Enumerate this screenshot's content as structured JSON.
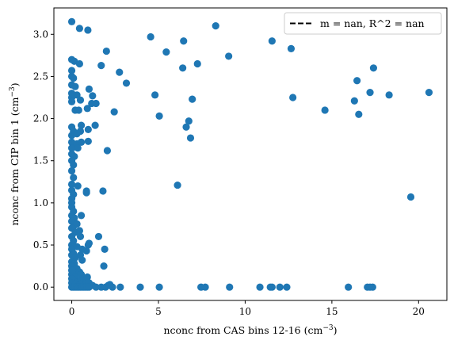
{
  "chart_data": {
    "type": "scatter",
    "title": "",
    "xlabel": "nconc from CAS bins 12-16 (cm",
    "xlabel_exp": "−3",
    "xlabel_close": ")",
    "ylabel": "nconc from CIP bin 1 (cm",
    "ylabel_exp": "−3",
    "ylabel_close": ")",
    "xlim": [
      -1.03,
      21.63
    ],
    "ylim": [
      -0.158,
      3.313
    ],
    "xticks": [
      0,
      5,
      10,
      15,
      20
    ],
    "xtick_labels": [
      "0",
      "5",
      "10",
      "15",
      "20"
    ],
    "yticks": [
      0.0,
      0.5,
      1.0,
      1.5,
      2.0,
      2.5,
      3.0
    ],
    "ytick_labels": [
      "0.0",
      "0.5",
      "1.0",
      "1.5",
      "2.0",
      "2.5",
      "3.0"
    ],
    "grid": false,
    "legend": {
      "placement": "top-right",
      "entries": [
        {
          "label": "m = nan, R^2 = nan",
          "style": "dashed-line",
          "color": "#000000"
        }
      ]
    },
    "series": [
      {
        "marker_color": "#1f77b4",
        "points": [
          [
            0.0,
            3.15
          ],
          [
            0.45,
            3.07
          ],
          [
            0.93,
            3.05
          ],
          [
            4.55,
            2.97
          ],
          [
            6.45,
            2.92
          ],
          [
            8.3,
            3.1
          ],
          [
            11.55,
            2.92
          ],
          [
            12.65,
            2.83
          ],
          [
            0.0,
            2.7
          ],
          [
            0.15,
            2.68
          ],
          [
            0.45,
            2.65
          ],
          [
            1.7,
            2.63
          ],
          [
            2.0,
            2.8
          ],
          [
            5.45,
            2.79
          ],
          [
            7.25,
            2.65
          ],
          [
            9.05,
            2.74
          ],
          [
            0.0,
            2.57
          ],
          [
            0.0,
            2.5
          ],
          [
            0.1,
            2.48
          ],
          [
            0.0,
            2.4
          ],
          [
            0.2,
            2.38
          ],
          [
            0.0,
            2.3
          ],
          [
            0.3,
            2.28
          ],
          [
            0.0,
            2.25
          ],
          [
            0.5,
            2.22
          ],
          [
            1.0,
            2.35
          ],
          [
            1.2,
            2.27
          ],
          [
            2.75,
            2.55
          ],
          [
            6.4,
            2.6
          ],
          [
            3.15,
            2.42
          ],
          [
            4.8,
            2.28
          ],
          [
            6.95,
            2.23
          ],
          [
            12.75,
            2.25
          ],
          [
            0.0,
            2.2
          ],
          [
            0.2,
            2.1
          ],
          [
            0.4,
            2.1
          ],
          [
            1.15,
            2.18
          ],
          [
            1.4,
            2.18
          ],
          [
            0.9,
            2.12
          ],
          [
            2.45,
            2.08
          ],
          [
            5.05,
            2.03
          ],
          [
            6.75,
            1.97
          ],
          [
            6.6,
            1.9
          ],
          [
            6.85,
            1.77
          ],
          [
            14.6,
            2.1
          ],
          [
            16.55,
            2.05
          ],
          [
            16.3,
            2.21
          ],
          [
            16.45,
            2.45
          ],
          [
            17.2,
            2.31
          ],
          [
            17.4,
            2.6
          ],
          [
            18.3,
            2.28
          ],
          [
            20.6,
            2.31
          ],
          [
            0.0,
            1.9
          ],
          [
            0.1,
            1.85
          ],
          [
            0.0,
            1.8
          ],
          [
            0.3,
            1.82
          ],
          [
            0.55,
            1.92
          ],
          [
            0.5,
            1.85
          ],
          [
            0.95,
            1.87
          ],
          [
            1.35,
            1.92
          ],
          [
            0.0,
            1.72
          ],
          [
            0.1,
            1.66
          ],
          [
            0.0,
            1.65
          ],
          [
            0.3,
            1.7
          ],
          [
            0.55,
            1.72
          ],
          [
            0.35,
            1.65
          ],
          [
            0.95,
            1.73
          ],
          [
            2.05,
            1.62
          ],
          [
            0.0,
            1.58
          ],
          [
            0.15,
            1.55
          ],
          [
            0.0,
            1.5
          ],
          [
            0.1,
            1.45
          ],
          [
            0.0,
            1.38
          ],
          [
            0.1,
            1.3
          ],
          [
            0.0,
            1.22
          ],
          [
            0.35,
            1.2
          ],
          [
            0.0,
            1.15
          ],
          [
            0.1,
            1.1
          ],
          [
            0.0,
            1.05
          ],
          [
            0.0,
            1.0
          ],
          [
            0.85,
            1.12
          ],
          [
            0.85,
            1.14
          ],
          [
            1.8,
            1.14
          ],
          [
            6.1,
            1.21
          ],
          [
            19.55,
            1.07
          ],
          [
            0.0,
            0.95
          ],
          [
            0.1,
            0.9
          ],
          [
            0.0,
            0.85
          ],
          [
            0.55,
            0.85
          ],
          [
            0.15,
            0.82
          ],
          [
            0.0,
            0.78
          ],
          [
            0.1,
            0.72
          ],
          [
            0.3,
            0.75
          ],
          [
            0.0,
            0.7
          ],
          [
            0.2,
            0.65
          ],
          [
            0.45,
            0.67
          ],
          [
            0.5,
            0.6
          ],
          [
            0.0,
            0.6
          ],
          [
            0.1,
            0.55
          ],
          [
            0.0,
            0.5
          ],
          [
            0.3,
            0.48
          ],
          [
            0.6,
            0.45
          ],
          [
            0.85,
            0.43
          ],
          [
            0.95,
            0.5
          ],
          [
            1.0,
            0.52
          ],
          [
            1.55,
            0.6
          ],
          [
            1.9,
            0.45
          ],
          [
            1.85,
            0.25
          ],
          [
            0.0,
            0.45
          ],
          [
            0.1,
            0.4
          ],
          [
            0.0,
            0.38
          ],
          [
            0.2,
            0.35
          ],
          [
            0.5,
            0.38
          ],
          [
            0.6,
            0.32
          ],
          [
            0.0,
            0.3
          ],
          [
            0.15,
            0.28
          ],
          [
            0.0,
            0.25
          ],
          [
            0.3,
            0.22
          ],
          [
            0.0,
            0.2
          ],
          [
            0.1,
            0.18
          ],
          [
            0.45,
            0.18
          ],
          [
            0.0,
            0.15
          ],
          [
            0.2,
            0.12
          ],
          [
            0.55,
            0.15
          ],
          [
            0.0,
            0.1
          ],
          [
            0.1,
            0.08
          ],
          [
            0.3,
            0.06
          ],
          [
            0.5,
            0.08
          ],
          [
            0.7,
            0.1
          ],
          [
            0.0,
            0.05
          ],
          [
            0.2,
            0.03
          ],
          [
            0.4,
            0.02
          ],
          [
            0.6,
            0.04
          ],
          [
            0.8,
            0.03
          ],
          [
            1.0,
            0.05
          ],
          [
            1.2,
            0.02
          ],
          [
            0.9,
            0.12
          ],
          [
            0.05,
            0.2
          ],
          [
            0.0,
            0.0
          ],
          [
            0.1,
            0.0
          ],
          [
            0.2,
            0.0
          ],
          [
            0.3,
            0.0
          ],
          [
            0.4,
            0.0
          ],
          [
            0.5,
            0.0
          ],
          [
            0.6,
            0.0
          ],
          [
            0.7,
            0.0
          ],
          [
            0.8,
            0.0
          ],
          [
            0.9,
            0.0
          ],
          [
            1.0,
            0.0
          ],
          [
            1.4,
            0.0
          ],
          [
            1.7,
            0.0
          ],
          [
            1.95,
            0.0
          ],
          [
            2.1,
            0.02
          ],
          [
            2.2,
            0.03
          ],
          [
            2.35,
            0.0
          ],
          [
            2.8,
            0.0
          ],
          [
            3.95,
            0.0
          ],
          [
            5.05,
            0.0
          ],
          [
            7.45,
            0.0
          ],
          [
            7.7,
            0.0
          ],
          [
            9.1,
            0.0
          ],
          [
            10.85,
            0.0
          ],
          [
            11.45,
            0.0
          ],
          [
            11.55,
            0.0
          ],
          [
            12.0,
            0.0
          ],
          [
            12.4,
            0.0
          ],
          [
            15.95,
            0.0
          ],
          [
            17.05,
            0.0
          ],
          [
            17.2,
            0.0
          ],
          [
            17.35,
            0.0
          ]
        ]
      }
    ]
  }
}
